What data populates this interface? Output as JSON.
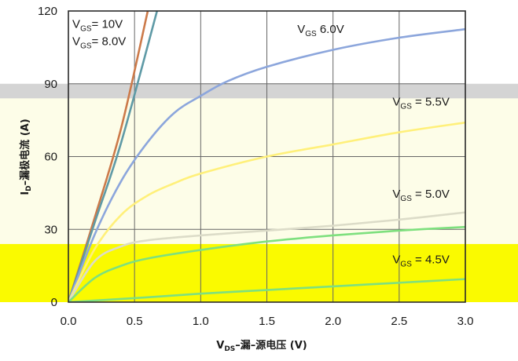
{
  "chart_data": {
    "type": "line",
    "xlabel_main": "V",
    "xlabel_sub": "DS",
    "xlabel_rest": "–漏–源电压 (V)",
    "ylabel_main": "I",
    "ylabel_sub": "D",
    "ylabel_rest": "–漏极电流 (A)",
    "xlim": [
      0,
      3.0
    ],
    "ylim": [
      0,
      120
    ],
    "x_ticks": [
      "0.0",
      "0.5",
      "1.0",
      "1.5",
      "2.0",
      "2.5",
      "3.0"
    ],
    "y_ticks": [
      "0",
      "30",
      "60",
      "90",
      "120"
    ],
    "grid": true,
    "bands": [
      {
        "y_from": 0,
        "y_to": 24,
        "color": "#fafa00"
      },
      {
        "y_from": 24,
        "y_to": 88,
        "color": "#fdfde8"
      },
      {
        "y_from": 84,
        "y_to": 90,
        "color": "#d4d4d4"
      }
    ],
    "series": [
      {
        "name": "V_GS = 10V",
        "color": "#cc7a4a",
        "x": [
          0,
          0.2,
          0.4,
          0.6
        ],
        "y": [
          0,
          35,
          72,
          120
        ]
      },
      {
        "name": "V_GS = 8.0V",
        "color": "#5f9aa6",
        "x": [
          0,
          0.2,
          0.4,
          0.67
        ],
        "y": [
          0,
          33,
          66,
          120
        ]
      },
      {
        "name": "V_GS = 6.0V",
        "color": "#8ca6dc",
        "x": [
          0,
          0.2,
          0.4,
          0.6,
          0.8,
          1.0,
          1.2,
          1.5,
          2.0,
          2.5,
          3.0
        ],
        "y": [
          0,
          28,
          50,
          66,
          78,
          85,
          91,
          97,
          104,
          109,
          112.5
        ]
      },
      {
        "name": "V_GS = 5.5V",
        "color": "#fff07a",
        "x": [
          0,
          0.2,
          0.4,
          0.6,
          0.8,
          1.0,
          1.5,
          2.0,
          2.5,
          3.0
        ],
        "y": [
          0,
          22,
          36,
          44,
          49,
          53,
          60,
          65,
          70,
          74
        ]
      },
      {
        "name": "V_GS = 5.0V",
        "color": "#dcdcc8",
        "x": [
          0,
          0.2,
          0.4,
          0.6,
          1.0,
          1.5,
          2.0,
          2.5,
          3.0
        ],
        "y": [
          0,
          17,
          23,
          25.5,
          27.5,
          29.5,
          31.5,
          34,
          37
        ]
      },
      {
        "name": "V_GS = 4.5V",
        "color": "#7ee07e",
        "x": [
          0,
          0.2,
          0.4,
          0.6,
          1.0,
          1.5,
          2.0,
          2.5,
          3.0
        ],
        "y": [
          0,
          10,
          15,
          18,
          21.5,
          25,
          27.5,
          29.5,
          31
        ]
      },
      {
        "name": "",
        "color": "#7ee07e",
        "x": [
          0,
          0.3,
          0.6,
          1.0,
          1.5,
          2.0,
          2.5,
          3.0
        ],
        "y": [
          0,
          1,
          2,
          3.5,
          5,
          6.5,
          8,
          9.5
        ]
      }
    ],
    "labels": [
      {
        "main": "V",
        "sub": "GS",
        "rest": "= 10V",
        "x": 0.03,
        "y": 113
      },
      {
        "main": "V",
        "sub": "GS",
        "rest": "= 8.0V",
        "x": 0.03,
        "y": 106
      },
      {
        "main": "V",
        "sub": "GS",
        "rest": " 6.0V",
        "x": 1.73,
        "y": 111
      },
      {
        "main": "V",
        "sub": "GS",
        "rest": " = 5.5V",
        "x": 2.45,
        "y": 81
      },
      {
        "main": "V",
        "sub": "GS",
        "rest": " = 5.0V",
        "x": 2.45,
        "y": 43
      },
      {
        "main": "V",
        "sub": "GS",
        "rest": " = 4.5V",
        "x": 2.45,
        "y": 16
      }
    ]
  }
}
